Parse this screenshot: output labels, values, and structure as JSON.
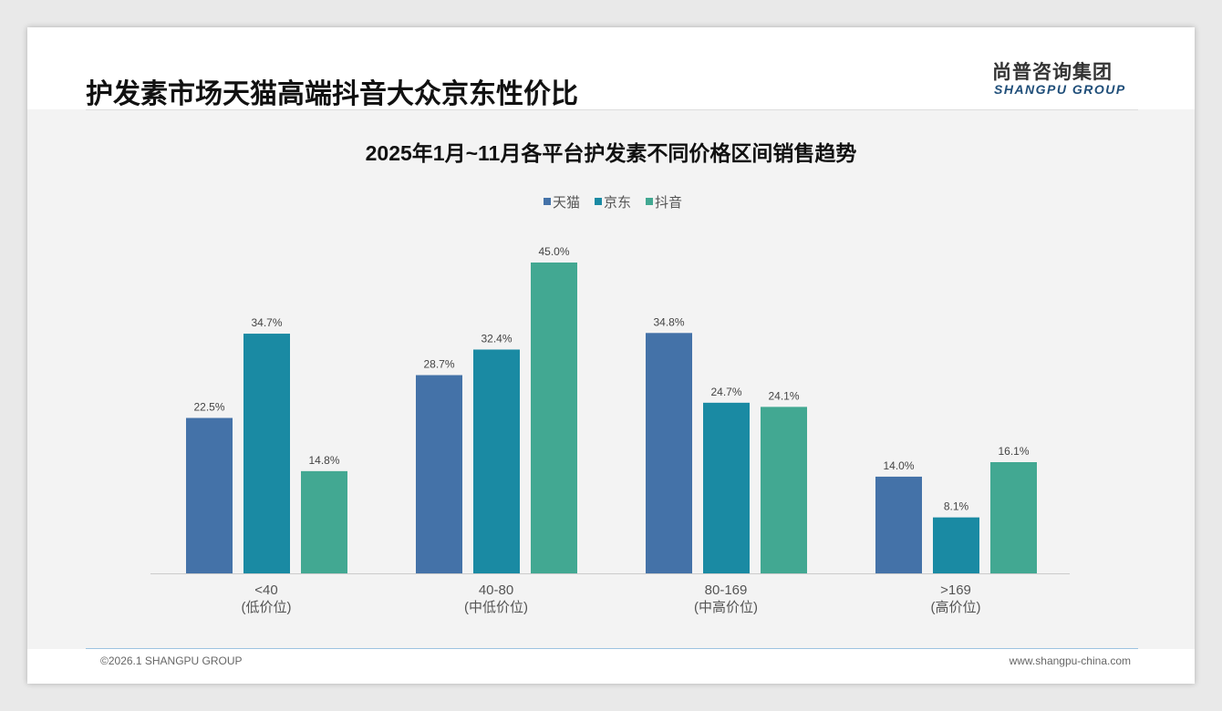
{
  "header": {
    "title": "护发素市场天猫高端抖音大众京东性价比",
    "logo_cn": "尚普咨询集团",
    "logo_en": "SHANGPU GROUP"
  },
  "footer": {
    "copyright": "©2026.1 SHANGPU GROUP",
    "website": "www.shangpu-china.com"
  },
  "colors": {
    "tmall": "#4472a8",
    "jd": "#1a8aa3",
    "douyin": "#42a892"
  },
  "chart_data": {
    "type": "bar",
    "title": "2025年1月~11月各平台护发素不同价格区间销售趋势",
    "categories": [
      "<40",
      "40-80",
      "80-169",
      ">169"
    ],
    "category_sublabels": [
      "(低价位)",
      "(中低价位)",
      "(中高价位)",
      "(高价位)"
    ],
    "series": [
      {
        "name": "天猫",
        "values": [
          22.5,
          28.7,
          34.8,
          14.0
        ]
      },
      {
        "name": "京东",
        "values": [
          34.7,
          32.4,
          24.7,
          8.1
        ]
      },
      {
        "name": "抖音",
        "values": [
          14.8,
          45.0,
          24.1,
          16.1
        ]
      }
    ],
    "unit": "%",
    "ylim": [
      0,
      45
    ],
    "legend": "top-center",
    "grid": false
  }
}
